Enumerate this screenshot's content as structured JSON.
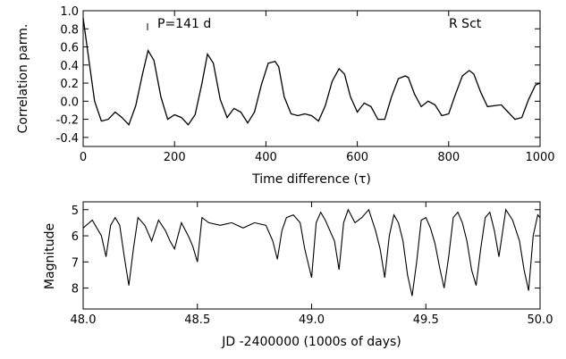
{
  "chart_data": [
    {
      "type": "line",
      "annotation": "P=141 d",
      "star_label": "R Sct",
      "xlabel": "Time difference (τ)",
      "ylabel": "Correlation parm.",
      "xlim": [
        0,
        1000
      ],
      "ylim": [
        -0.5,
        1.0
      ],
      "x_ticks": [
        "0",
        "200",
        "400",
        "600",
        "800",
        "1000"
      ],
      "y_ticks": [
        "-0.4",
        "-0.2",
        "0.0",
        "0.2",
        "0.4",
        "0.6",
        "0.8",
        "1.0"
      ],
      "grid": false,
      "series": [
        {
          "x": [
            0,
            10,
            25,
            40,
            55,
            70,
            85,
            100,
            115,
            130,
            142,
            155,
            170,
            185,
            200,
            215,
            230,
            245,
            260,
            272,
            285,
            300,
            315,
            330,
            345,
            360,
            375,
            390,
            405,
            420,
            428,
            440,
            455,
            470,
            485,
            500,
            515,
            530,
            545,
            560,
            572,
            585,
            600,
            615,
            630,
            645,
            660,
            675,
            690,
            705,
            712,
            725,
            740,
            755,
            770,
            785,
            800,
            815,
            830,
            845,
            855,
            870,
            885,
            900,
            915,
            930,
            945,
            960,
            975,
            990,
            1000
          ],
          "y": [
            0.92,
            0.55,
            0.0,
            -0.22,
            -0.2,
            -0.12,
            -0.18,
            -0.26,
            -0.05,
            0.3,
            0.56,
            0.45,
            0.05,
            -0.2,
            -0.15,
            -0.18,
            -0.26,
            -0.15,
            0.2,
            0.52,
            0.42,
            0.02,
            -0.18,
            -0.08,
            -0.12,
            -0.24,
            -0.12,
            0.18,
            0.42,
            0.44,
            0.38,
            0.05,
            -0.14,
            -0.16,
            -0.14,
            -0.16,
            -0.22,
            -0.05,
            0.22,
            0.36,
            0.3,
            0.05,
            -0.12,
            -0.02,
            -0.06,
            -0.2,
            -0.2,
            0.05,
            0.25,
            0.28,
            0.26,
            0.08,
            -0.06,
            0.0,
            -0.04,
            -0.16,
            -0.14,
            0.08,
            0.28,
            0.34,
            0.3,
            0.1,
            -0.06,
            -0.05,
            -0.04,
            -0.12,
            -0.2,
            -0.18,
            0.02,
            0.18,
            0.2
          ]
        }
      ]
    },
    {
      "type": "line",
      "xlabel": "JD -2400000 (1000s of days)",
      "ylabel": "Magnitude",
      "xlim": [
        48.0,
        50.0
      ],
      "ylim": [
        8.8,
        4.7
      ],
      "y_inverted": true,
      "x_ticks": [
        "48.0",
        "48.5",
        "49.0",
        "49.5",
        "50.0"
      ],
      "y_ticks": [
        "5",
        "6",
        "7",
        "8"
      ],
      "grid": false,
      "series": [
        {
          "x": [
            48.0,
            48.04,
            48.08,
            48.1,
            48.12,
            48.14,
            48.16,
            48.18,
            48.2,
            48.22,
            48.24,
            48.27,
            48.3,
            48.33,
            48.36,
            48.38,
            48.4,
            48.43,
            48.46,
            48.48,
            48.5,
            48.52,
            48.55,
            48.6,
            48.65,
            48.7,
            48.75,
            48.8,
            48.83,
            48.85,
            48.87,
            48.89,
            48.92,
            48.95,
            48.97,
            49.0,
            49.02,
            49.04,
            49.06,
            49.08,
            49.1,
            49.12,
            49.14,
            49.16,
            49.19,
            49.22,
            49.25,
            49.28,
            49.3,
            49.32,
            49.34,
            49.36,
            49.38,
            49.4,
            49.42,
            49.44,
            49.46,
            49.48,
            49.5,
            49.52,
            49.54,
            49.56,
            49.58,
            49.6,
            49.62,
            49.64,
            49.66,
            49.68,
            49.7,
            49.72,
            49.74,
            49.76,
            49.78,
            49.8,
            49.82,
            49.85,
            49.88,
            49.91,
            49.93,
            49.95,
            49.97,
            49.99,
            50.0
          ],
          "y": [
            5.7,
            5.4,
            6.0,
            6.8,
            5.6,
            5.3,
            5.6,
            6.8,
            7.9,
            6.5,
            5.3,
            5.6,
            6.2,
            5.4,
            5.8,
            6.2,
            6.5,
            5.5,
            6.0,
            6.4,
            7.0,
            5.3,
            5.5,
            5.6,
            5.5,
            5.7,
            5.5,
            5.6,
            6.2,
            6.9,
            5.8,
            5.3,
            5.2,
            5.5,
            6.5,
            7.6,
            5.5,
            5.1,
            5.4,
            5.8,
            6.2,
            7.3,
            5.5,
            5.0,
            5.5,
            5.3,
            5.0,
            5.8,
            6.5,
            7.6,
            6.0,
            5.2,
            5.5,
            6.2,
            7.5,
            8.3,
            7.0,
            5.4,
            5.3,
            5.7,
            6.3,
            7.2,
            8.0,
            6.8,
            5.3,
            5.1,
            5.5,
            6.2,
            7.3,
            7.9,
            6.5,
            5.3,
            5.1,
            5.8,
            6.8,
            5.0,
            5.4,
            6.2,
            7.3,
            8.1,
            6.0,
            5.2,
            5.3
          ]
        }
      ]
    }
  ]
}
